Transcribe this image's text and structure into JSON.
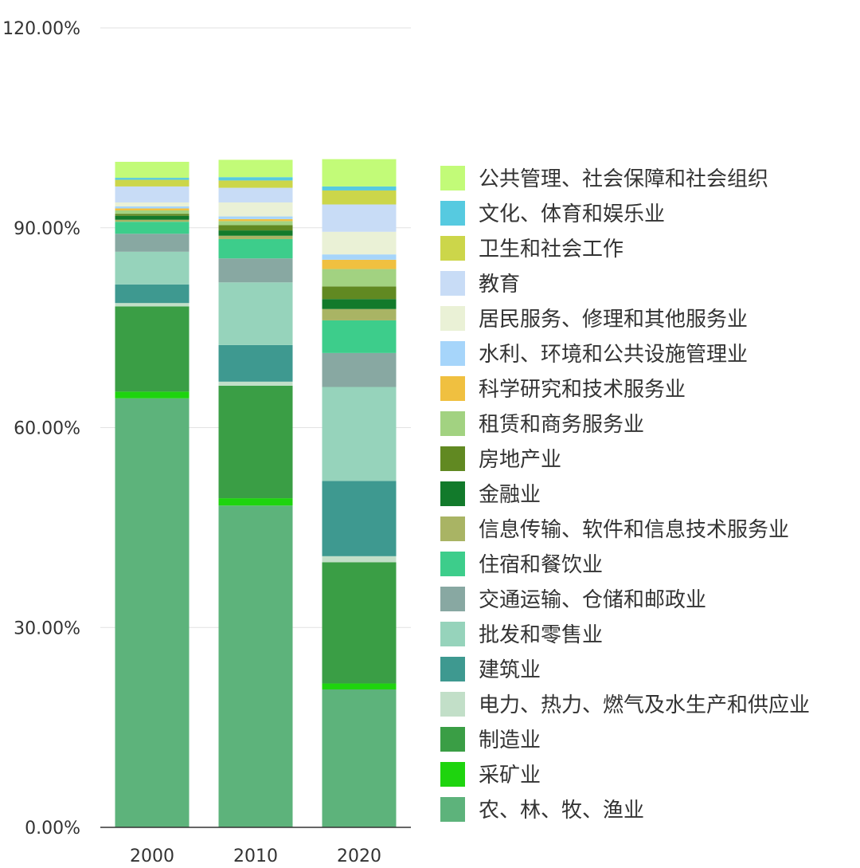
{
  "chart_data": {
    "type": "bar",
    "stacked": true,
    "categories": [
      "2000",
      "2010",
      "2020"
    ],
    "ylim": [
      0,
      120
    ],
    "yticks": [
      0,
      30,
      60,
      90,
      120
    ],
    "ytick_labels": [
      "0.00%",
      "30.00%",
      "60.00%",
      "90.00%",
      "120.00%"
    ],
    "grid": true,
    "legend_position": "right",
    "series": [
      {
        "name": "农、林、牧、渔业",
        "color": "#5db37b",
        "values": [
          64.4,
          48.3,
          20.7
        ]
      },
      {
        "name": "采矿业",
        "color": "#1ed40e",
        "values": [
          1.0,
          1.1,
          0.9
        ]
      },
      {
        "name": "制造业",
        "color": "#3a9e45",
        "values": [
          12.8,
          16.9,
          18.2
        ]
      },
      {
        "name": "电力、热力、燃气及水生产和供应业",
        "color": "#c2dfc8",
        "values": [
          0.5,
          0.6,
          0.9
        ]
      },
      {
        "name": "建筑业",
        "color": "#3e9990",
        "values": [
          2.8,
          5.5,
          11.3
        ]
      },
      {
        "name": "批发和零售业",
        "color": "#96d3bb",
        "values": [
          4.9,
          9.4,
          14.1
        ]
      },
      {
        "name": "交通运输、仓储和邮政业",
        "color": "#88a8a2",
        "values": [
          2.7,
          3.6,
          5.1
        ]
      },
      {
        "name": "住宿和餐饮业",
        "color": "#3dcd8b",
        "values": [
          1.8,
          2.9,
          4.9
        ]
      },
      {
        "name": "信息传输、软件和信息技术服务业",
        "color": "#a9b464",
        "values": [
          0.3,
          0.5,
          1.7
        ]
      },
      {
        "name": "金融业",
        "color": "#127a2b",
        "values": [
          0.6,
          0.8,
          1.5
        ]
      },
      {
        "name": "房地产业",
        "color": "#618922",
        "values": [
          0.3,
          0.8,
          1.9
        ]
      },
      {
        "name": "租赁和商务服务业",
        "color": "#a2d281",
        "values": [
          0.5,
          0.6,
          2.6
        ]
      },
      {
        "name": "科学研究和技术服务业",
        "color": "#f0c040",
        "values": [
          0.3,
          0.3,
          1.4
        ]
      },
      {
        "name": "水利、环境和公共设施管理业",
        "color": "#a6d5fa",
        "values": [
          0.3,
          0.4,
          0.8
        ]
      },
      {
        "name": "居民服务、修理和其他服务业",
        "color": "#eaf1d6",
        "values": [
          0.6,
          2.1,
          3.4
        ]
      },
      {
        "name": "教育",
        "color": "#c8dcf6",
        "values": [
          2.4,
          2.2,
          4.1
        ]
      },
      {
        "name": "卫生和社会工作",
        "color": "#ccd64a",
        "values": [
          1.0,
          1.1,
          2.1
        ]
      },
      {
        "name": "文化、体育和娱乐业",
        "color": "#56cae0",
        "values": [
          0.3,
          0.5,
          0.6
        ]
      },
      {
        "name": "公共管理、社会保障和社会组织",
        "color": "#c2fb78",
        "values": [
          2.4,
          2.6,
          4.1
        ]
      }
    ]
  }
}
